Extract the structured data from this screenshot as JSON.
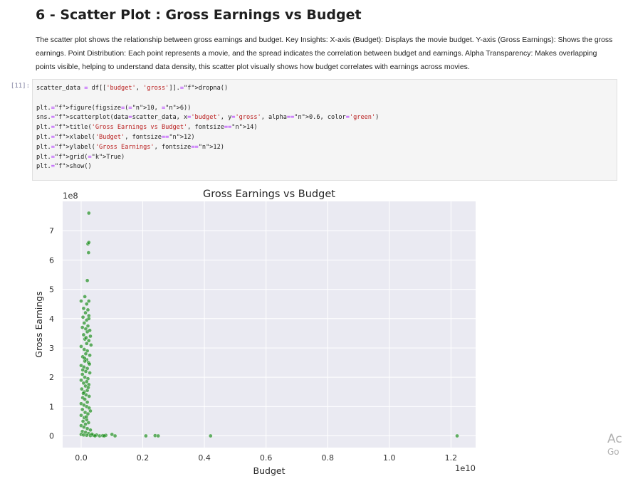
{
  "notebook": {
    "heading": "6 - Scatter Plot : Gross Earnings vs Budget",
    "description": "The scatter plot shows the relationship between gross earnings and budget. Key Insights: X-axis (Budget): Displays the movie budget. Y-axis (Gross Earnings): Shows the gross earnings. Point Distribution: Each point represents a movie, and the spread indicates the correlation between budget and earnings. Alpha Transparency: Makes overlapping points visible, helping to understand data density, this scatter plot visually shows how budget correlates with earnings across movies.",
    "cell_prompt": "[11]:",
    "code_lines": [
      "scatter_data = df[['budget', 'gross']].dropna()",
      "",
      "plt.figure(figsize=(10, 6))",
      "sns.scatterplot(data=scatter_data, x='budget', y='gross', alpha=0.6, color='green')",
      "plt.title('Gross Earnings vs Budget', fontsize=14)",
      "plt.xlabel('Budget', fontsize=12)",
      "plt.ylabel('Gross Earnings', fontsize=12)",
      "plt.grid(True)",
      "plt.show()"
    ]
  },
  "watermark": {
    "line1": "Ac",
    "line2": "Go"
  },
  "chart_data": {
    "type": "scatter",
    "title": "Gross Earnings vs Budget",
    "xlabel": "Budget",
    "ylabel": "Gross Earnings",
    "x_offset_label": "1e10",
    "y_offset_label": "1e8",
    "x_ticks": [
      0.0,
      0.2,
      0.4,
      0.6,
      0.8,
      1.0,
      1.2
    ],
    "x_tick_labels": [
      "0.0",
      "0.2",
      "0.4",
      "0.6",
      "0.8",
      "1.0",
      "1.2"
    ],
    "y_ticks": [
      0,
      1,
      2,
      3,
      4,
      5,
      6,
      7
    ],
    "y_tick_labels": [
      "0",
      "1",
      "2",
      "3",
      "4",
      "5",
      "6",
      "7"
    ],
    "xlim": [
      -0.06,
      1.28
    ],
    "ylim": [
      -0.4,
      8.0
    ],
    "grid": true,
    "point_color": "#008000",
    "point_alpha": 0.6,
    "axes_background": "#eaeaf2",
    "points": [
      [
        0.025,
        7.6
      ],
      [
        0.022,
        6.55
      ],
      [
        0.025,
        6.6
      ],
      [
        0.024,
        6.25
      ],
      [
        0.02,
        5.3
      ],
      [
        0.012,
        4.75
      ],
      [
        0.0,
        4.6
      ],
      [
        0.025,
        4.6
      ],
      [
        0.018,
        4.5
      ],
      [
        0.008,
        4.35
      ],
      [
        0.022,
        4.3
      ],
      [
        0.014,
        4.2
      ],
      [
        0.025,
        4.1
      ],
      [
        0.006,
        4.05
      ],
      [
        0.018,
        3.95
      ],
      [
        0.01,
        3.85
      ],
      [
        0.022,
        3.75
      ],
      [
        0.004,
        3.7
      ],
      [
        0.015,
        3.65
      ],
      [
        0.02,
        3.55
      ],
      [
        0.03,
        3.4
      ],
      [
        0.008,
        3.45
      ],
      [
        0.012,
        3.3
      ],
      [
        0.025,
        3.25
      ],
      [
        0.018,
        3.15
      ],
      [
        0.032,
        3.1
      ],
      [
        0.0,
        3.05
      ],
      [
        0.01,
        2.95
      ],
      [
        0.02,
        2.9
      ],
      [
        0.015,
        2.8
      ],
      [
        0.028,
        2.75
      ],
      [
        0.005,
        2.7
      ],
      [
        0.018,
        2.6
      ],
      [
        0.012,
        2.55
      ],
      [
        0.024,
        2.5
      ],
      [
        0.0,
        2.4
      ],
      [
        0.009,
        2.35
      ],
      [
        0.02,
        2.3
      ],
      [
        0.015,
        2.2
      ],
      [
        0.028,
        2.15
      ],
      [
        0.004,
        2.1
      ],
      [
        0.012,
        2.0
      ],
      [
        0.022,
        1.95
      ],
      [
        0.0,
        1.9
      ],
      [
        0.018,
        1.85
      ],
      [
        0.008,
        1.8
      ],
      [
        0.025,
        1.75
      ],
      [
        0.014,
        1.7
      ],
      [
        0.002,
        1.6
      ],
      [
        0.02,
        1.55
      ],
      [
        0.01,
        1.5
      ],
      [
        0.016,
        1.4
      ],
      [
        0.026,
        1.35
      ],
      [
        0.005,
        1.3
      ],
      [
        0.012,
        1.25
      ],
      [
        0.02,
        1.15
      ],
      [
        0.0,
        1.1
      ],
      [
        0.009,
        1.05
      ],
      [
        0.018,
        1.0
      ],
      [
        0.026,
        0.95
      ],
      [
        0.004,
        0.9
      ],
      [
        0.013,
        0.8
      ],
      [
        0.022,
        0.75
      ],
      [
        0.0,
        0.7
      ],
      [
        0.01,
        0.62
      ],
      [
        0.018,
        0.55
      ],
      [
        0.006,
        0.5
      ],
      [
        0.024,
        0.45
      ],
      [
        0.014,
        0.4
      ],
      [
        0.0,
        0.35
      ],
      [
        0.009,
        0.3
      ],
      [
        0.02,
        0.25
      ],
      [
        0.03,
        0.2
      ],
      [
        0.004,
        0.15
      ],
      [
        0.014,
        0.12
      ],
      [
        0.024,
        0.08
      ],
      [
        0.0,
        0.05
      ],
      [
        0.008,
        0.03
      ],
      [
        0.018,
        0.02
      ],
      [
        0.03,
        0.01
      ],
      [
        0.04,
        0.02
      ],
      [
        0.05,
        0.03
      ],
      [
        0.06,
        0.0
      ],
      [
        0.07,
        0.01
      ],
      [
        0.08,
        0.02
      ],
      [
        0.1,
        0.05
      ],
      [
        0.11,
        0.0
      ],
      [
        0.075,
        0.0
      ],
      [
        0.035,
        0.06
      ],
      [
        0.045,
        0.0
      ],
      [
        0.025,
        4.0
      ],
      [
        0.016,
        3.35
      ],
      [
        0.027,
        2.45
      ],
      [
        0.011,
        2.65
      ],
      [
        0.023,
        1.65
      ],
      [
        0.007,
        1.45
      ],
      [
        0.03,
        0.85
      ],
      [
        0.017,
        0.65
      ],
      [
        0.028,
        3.6
      ],
      [
        0.005,
        2.25
      ],
      [
        0.21,
        0.0
      ],
      [
        0.24,
        0.01
      ],
      [
        0.25,
        0.0
      ],
      [
        0.42,
        0.0
      ],
      [
        1.22,
        0.0
      ]
    ]
  }
}
